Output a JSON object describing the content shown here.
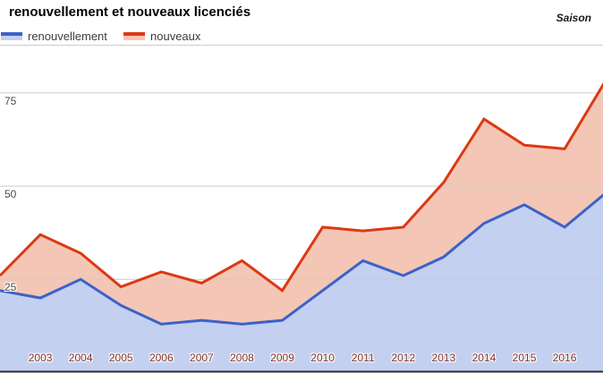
{
  "header": {
    "title": "renouvellement et nouveaux licenciés",
    "axis_title": "Saison"
  },
  "legend": {
    "items": [
      {
        "label": "renouvellement",
        "line_color": "#3B62C9",
        "fill_color": "#C4D0F0"
      },
      {
        "label": "nouveaux",
        "line_color": "#DC3912",
        "fill_color": "#F4C6B6"
      }
    ]
  },
  "chart_data": {
    "type": "area",
    "title": "renouvellement et nouveaux licenciés",
    "x_axis_title": "Saison",
    "x": [
      2002,
      2003,
      2004,
      2005,
      2006,
      2007,
      2008,
      2009,
      2010,
      2011,
      2012,
      2013,
      2014,
      2015,
      2016,
      2017
    ],
    "x_tick_labels": [
      "2003",
      "2004",
      "2005",
      "2006",
      "2007",
      "2008",
      "2009",
      "2010",
      "2011",
      "2012",
      "2013",
      "2014",
      "2015",
      "2016"
    ],
    "y_ticks": [
      25,
      50,
      75
    ],
    "xlim": [
      2002,
      2017
    ],
    "ylim": [
      0,
      88
    ],
    "grid": true,
    "legend_position": "top",
    "series": [
      {
        "name": "renouvellement",
        "color": "#3B62C9",
        "fill": "#C4D0F0",
        "values": [
          22,
          20,
          25,
          18,
          13,
          14,
          13,
          14,
          22,
          30,
          26,
          31,
          40,
          45,
          39,
          48
        ]
      },
      {
        "name": "nouveaux",
        "color": "#DC3912",
        "fill": "#F4C6B6",
        "values": [
          26,
          37,
          32,
          23,
          27,
          24,
          30,
          22,
          39,
          38,
          39,
          51,
          68,
          61,
          60,
          78
        ]
      }
    ],
    "gridline_color": "#CCCCCC",
    "baseline_color": "#2B2B2B",
    "x_tick_color": "#82302C",
    "y_tick_color": "#4A4A4A"
  }
}
